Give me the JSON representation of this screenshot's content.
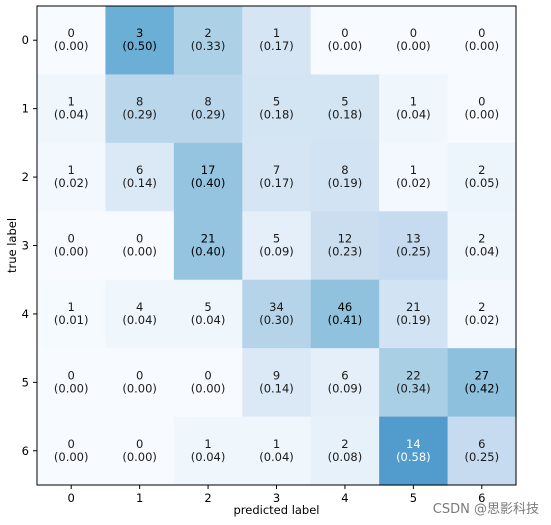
{
  "chart_data": {
    "type": "heatmap",
    "title": "",
    "xlabel": "predicted label",
    "ylabel": "true label",
    "x_ticks": [
      "0",
      "1",
      "2",
      "3",
      "4",
      "5",
      "6"
    ],
    "y_ticks": [
      "0",
      "1",
      "2",
      "3",
      "4",
      "5",
      "6"
    ],
    "colormap": "Blues",
    "counts": [
      [
        0,
        3,
        2,
        1,
        0,
        0,
        0
      ],
      [
        1,
        8,
        8,
        5,
        5,
        1,
        0
      ],
      [
        1,
        6,
        17,
        7,
        8,
        1,
        2
      ],
      [
        0,
        0,
        21,
        5,
        12,
        13,
        2
      ],
      [
        1,
        4,
        5,
        34,
        46,
        21,
        2
      ],
      [
        0,
        0,
        0,
        9,
        6,
        22,
        27
      ],
      [
        0,
        0,
        1,
        1,
        2,
        14,
        6
      ]
    ],
    "fractions": [
      [
        "0.00",
        "0.50",
        "0.33",
        "0.17",
        "0.00",
        "0.00",
        "0.00"
      ],
      [
        "0.04",
        "0.29",
        "0.29",
        "0.18",
        "0.18",
        "0.04",
        "0.00"
      ],
      [
        "0.02",
        "0.14",
        "0.40",
        "0.17",
        "0.19",
        "0.02",
        "0.05"
      ],
      [
        "0.00",
        "0.00",
        "0.40",
        "0.09",
        "0.23",
        "0.25",
        "0.04"
      ],
      [
        "0.01",
        "0.04",
        "0.04",
        "0.30",
        "0.41",
        "0.19",
        "0.02"
      ],
      [
        "0.00",
        "0.00",
        "0.00",
        "0.14",
        "0.09",
        "0.34",
        "0.42"
      ],
      [
        "0.00",
        "0.00",
        "0.04",
        "0.04",
        "0.08",
        "0.58",
        "0.25"
      ]
    ]
  },
  "watermark": "CSDN @思影科技"
}
